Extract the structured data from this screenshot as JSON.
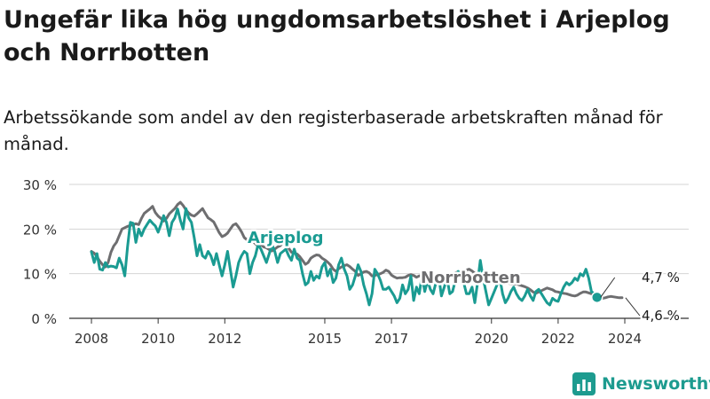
{
  "header": {
    "title": "Ungefär lika hög ungdomsarbetslöshet i Arjeplog och Norrbotten",
    "subtitle": "Arbetssökande som andel av den registerbaserade arbetskraften månad för månad."
  },
  "brand": {
    "name": "Newsworthy",
    "icon": "bar-chart-logo-icon",
    "color": "#1d9b8f"
  },
  "chart_data": {
    "type": "line",
    "x_start": "2008-01",
    "x_end": "2025-04",
    "xlim": [
      "2007-05",
      "2025-12"
    ],
    "ylim": [
      0,
      30
    ],
    "grid": true,
    "y_ticks": [
      0,
      10,
      20,
      30
    ],
    "y_tick_labels": [
      "0 %",
      "10 %",
      "20 %",
      "30 %"
    ],
    "x_ticks": [
      2008,
      2010,
      2012,
      2015,
      2017,
      2020,
      2022,
      2024
    ],
    "x_tick_labels": [
      "2008",
      "2010",
      "2012",
      "2015",
      "2017",
      "2020",
      "2022",
      "2024"
    ],
    "series": [
      {
        "name": "Norrbotten",
        "color": "#6e6e70",
        "end_label": "4,6 %",
        "values": [
          15.0,
          14.6,
          13.8,
          12.8,
          12.0,
          11.5,
          12.5,
          14.8,
          16.2,
          17.0,
          18.5,
          20.0,
          20.3,
          20.6,
          20.8,
          21.0,
          21.2,
          21.0,
          22.4,
          23.5,
          24.0,
          24.5,
          25.1,
          23.7,
          22.9,
          22.4,
          21.8,
          22.4,
          23.4,
          24.0,
          24.6,
          25.5,
          26.0,
          25.3,
          24.3,
          23.6,
          23.1,
          22.9,
          23.4,
          24.0,
          24.6,
          23.5,
          22.5,
          22.1,
          21.6,
          20.4,
          19.2,
          18.3,
          18.6,
          19.1,
          20.0,
          20.9,
          21.2,
          20.4,
          19.4,
          18.1,
          17.6,
          18.1,
          17.4,
          16.7,
          16.2,
          16.5,
          16.0,
          15.8,
          15.4,
          15.1,
          15.5,
          16.0,
          16.3,
          17.0,
          16.5,
          15.7,
          14.8,
          14.6,
          14.4,
          13.8,
          13.0,
          12.1,
          12.5,
          13.5,
          13.9,
          14.2,
          14.1,
          13.5,
          13.1,
          12.6,
          12.0,
          11.0,
          10.5,
          11.1,
          11.5,
          11.8,
          12.0,
          11.6,
          11.0,
          10.5,
          9.6,
          10.0,
          10.4,
          10.5,
          10.2,
          9.5,
          9.6,
          9.8,
          10.0,
          10.3,
          10.8,
          10.5,
          9.7,
          9.3,
          9.0,
          9.1,
          9.1,
          9.2,
          9.6,
          9.8,
          9.6,
          9.2,
          9.5,
          9.6,
          9.5,
          9.7,
          9.4,
          9.6,
          9.8,
          9.5,
          9.4,
          9.6,
          9.4,
          9.6,
          9.8,
          10.2,
          10.4,
          10.1,
          10.3,
          10.8,
          11.0,
          10.6,
          10.1,
          9.5,
          9.2,
          9.0,
          8.8,
          8.6,
          8.2,
          7.8,
          7.7,
          7.9,
          7.9,
          8.0,
          7.9,
          7.7,
          7.7,
          7.7,
          7.5,
          7.3,
          7.1,
          6.8,
          6.4,
          5.9,
          5.6,
          5.9,
          6.2,
          6.5,
          6.8,
          6.6,
          6.4,
          6.0,
          5.9,
          5.7,
          5.6,
          5.5,
          5.3,
          5.1,
          5.0,
          5.2,
          5.6,
          5.9,
          5.9,
          5.7,
          5.5,
          5.2,
          5.0,
          4.7,
          4.5,
          4.6,
          4.8,
          4.9,
          4.8,
          4.7,
          4.6,
          4.6
        ]
      },
      {
        "name": "Arjeplog",
        "color": "#1a9b92",
        "end_label": "4,7 %",
        "values": [
          14.9,
          12.5,
          14.5,
          11.0,
          10.8,
          12.5,
          11.5,
          11.7,
          11.6,
          11.3,
          13.5,
          12.0,
          9.5,
          16.0,
          21.5,
          21.3,
          17.0,
          20.0,
          18.5,
          20.0,
          21.0,
          22.0,
          21.3,
          20.7,
          19.3,
          21.0,
          23.0,
          21.5,
          18.5,
          21.5,
          22.5,
          24.5,
          22.0,
          20.0,
          24.6,
          22.5,
          21.5,
          18.0,
          14.0,
          16.5,
          14.0,
          13.5,
          15.0,
          14.0,
          12.0,
          14.5,
          12.0,
          9.5,
          12.0,
          15.0,
          11.0,
          7.0,
          9.5,
          12.5,
          14.0,
          15.0,
          14.5,
          10.0,
          12.5,
          14.0,
          16.5,
          15.5,
          14.0,
          12.5,
          14.5,
          16.5,
          15.0,
          12.5,
          14.5,
          15.0,
          15.5,
          14.0,
          13.0,
          15.5,
          13.5,
          13.0,
          10.0,
          7.5,
          8.0,
          10.5,
          8.5,
          9.5,
          9.0,
          11.5,
          12.5,
          9.5,
          11.0,
          8.0,
          9.0,
          12.0,
          13.5,
          11.0,
          9.5,
          6.5,
          7.5,
          9.5,
          12.0,
          10.5,
          7.5,
          5.5,
          3.0,
          5.5,
          11.0,
          10.0,
          8.5,
          6.5,
          6.5,
          7.0,
          6.0,
          5.0,
          3.5,
          4.5,
          7.5,
          5.5,
          6.5,
          9.5,
          4.0,
          7.0,
          5.5,
          9.5,
          6.0,
          8.5,
          6.5,
          5.5,
          8.0,
          9.5,
          5.0,
          7.0,
          9.0,
          5.5,
          6.0,
          8.5,
          10.5,
          10.0,
          8.0,
          5.5,
          5.5,
          7.0,
          3.5,
          8.0,
          13.0,
          9.0,
          6.0,
          3.0,
          4.5,
          6.0,
          7.5,
          9.0,
          5.5,
          3.5,
          4.5,
          6.0,
          7.0,
          5.5,
          4.5,
          4.0,
          5.0,
          6.5,
          5.0,
          4.0,
          6.0,
          6.5,
          5.5,
          4.5,
          3.5,
          3.0,
          4.5,
          4.0,
          3.8,
          5.5,
          7.0,
          8.0,
          7.5,
          8.0,
          9.0,
          8.5,
          10.0,
          9.5,
          11.0,
          9.0,
          6.0,
          5.5,
          4.7
        ]
      }
    ]
  }
}
